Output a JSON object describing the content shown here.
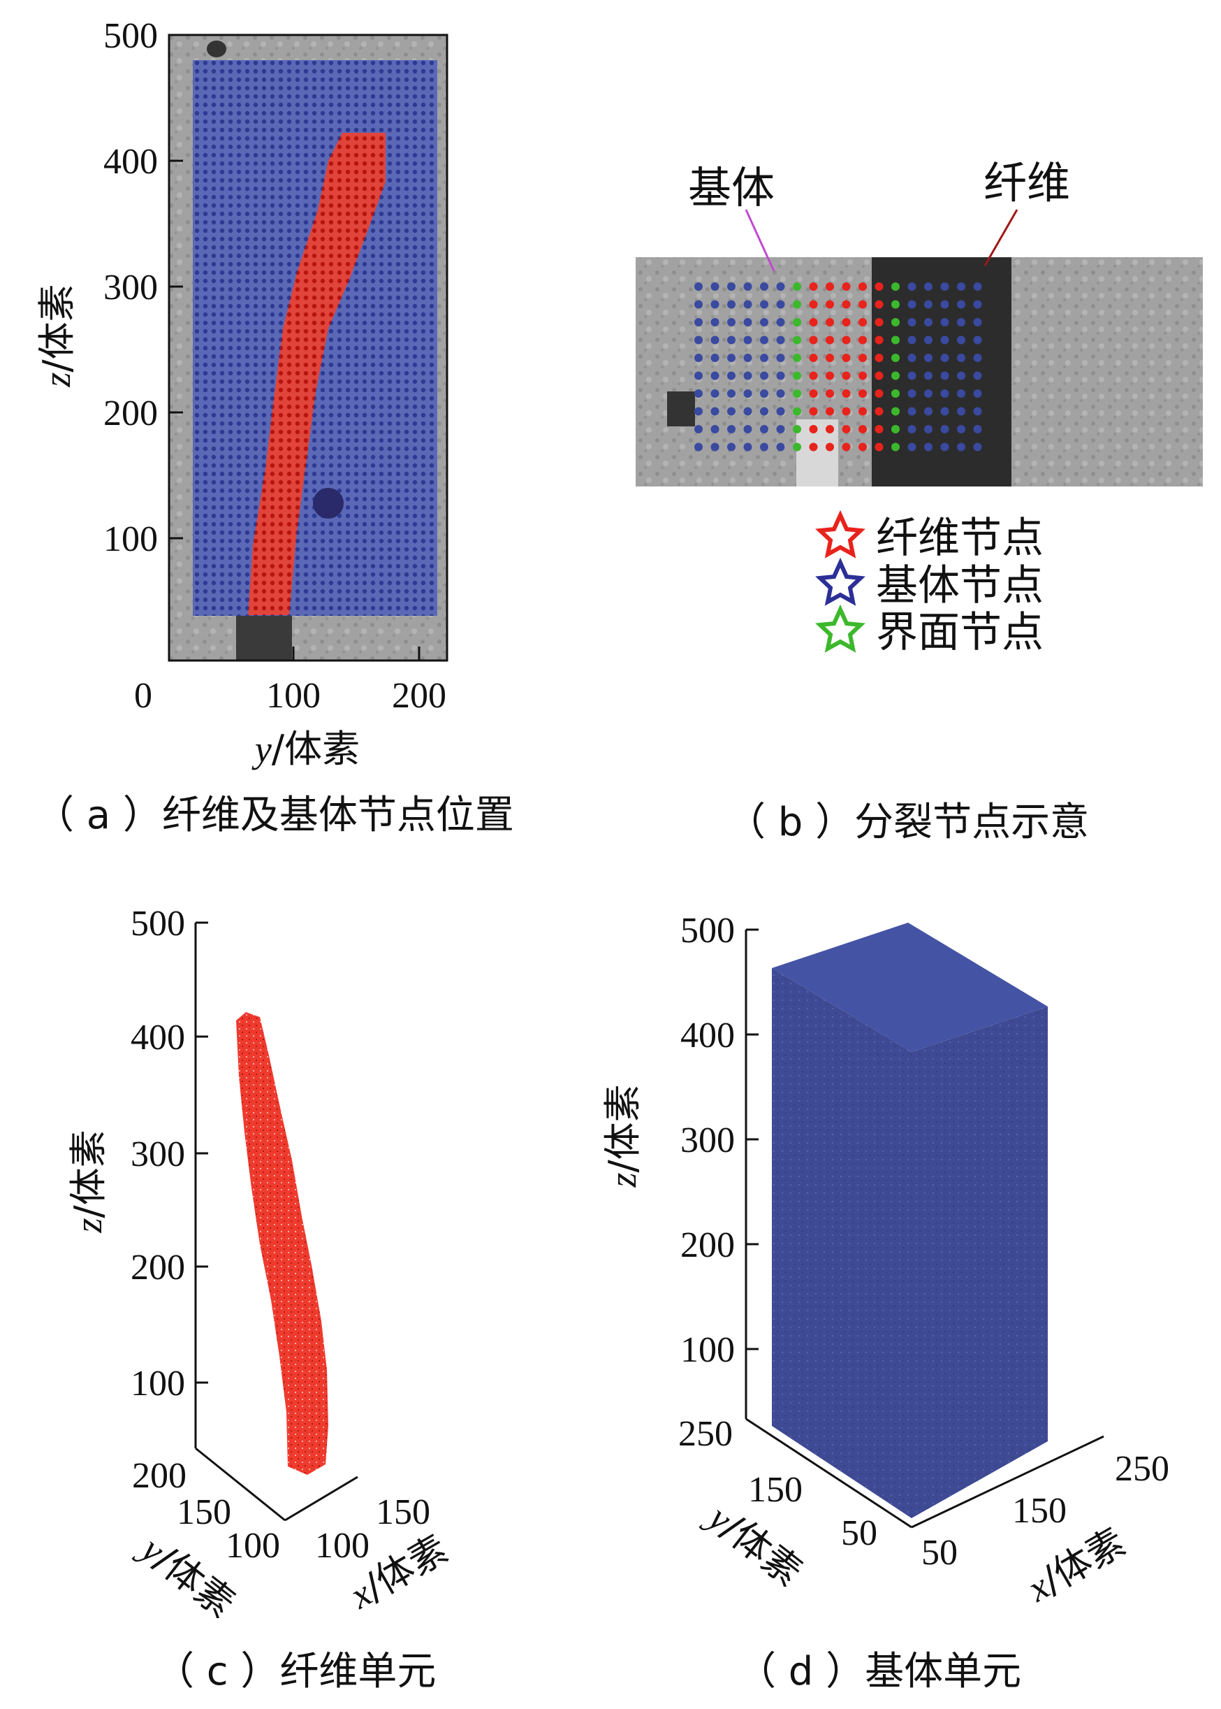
{
  "panels": {
    "a": {
      "caption": "（ a ）纤维及基体节点位置",
      "xlabel_var": "y",
      "xlabel_unit": "/体素",
      "ylabel_var": "z",
      "ylabel_unit": "/体素",
      "x_ticks": [
        "0",
        "100",
        "200"
      ],
      "y_ticks": [
        "500",
        "400",
        "300",
        "200",
        "100"
      ]
    },
    "b": {
      "caption": "（ b ）分裂节点示意",
      "label_matrix": "基体",
      "label_fiber": "纤维",
      "legend": [
        {
          "label": "纤维节点",
          "color": "#e8231c"
        },
        {
          "label": "基体节点",
          "color": "#2c2f95"
        },
        {
          "label": "界面节点",
          "color": "#3cb82c"
        }
      ]
    },
    "c": {
      "caption": "（ c ）纤维单元",
      "z_ticks": [
        "500",
        "400",
        "300",
        "200",
        "100"
      ],
      "y_ticks": [
        "200",
        "150",
        "100"
      ],
      "x_ticks": [
        "100",
        "150"
      ],
      "zlabel_var": "z",
      "zlabel_unit": "/体素",
      "ylabel_var": "y",
      "ylabel_unit": "/体素",
      "xlabel_var": "x",
      "xlabel_unit": "/体素"
    },
    "d": {
      "caption": "（ d ）基体单元",
      "z_ticks": [
        "500",
        "400",
        "300",
        "200",
        "100"
      ],
      "y_ticks": [
        "250",
        "150",
        "50"
      ],
      "x_ticks": [
        "50",
        "150",
        "250"
      ],
      "zlabel_var": "z",
      "zlabel_unit": "/体素",
      "ylabel_var": "y",
      "ylabel_unit": "/体素",
      "xlabel_var": "x",
      "xlabel_unit": "/体素"
    }
  },
  "colors": {
    "fiber": "#e8231c",
    "matrix": "#3a4aa0",
    "interface": "#3cb82c",
    "ct_gray": "#9a9a9a"
  }
}
